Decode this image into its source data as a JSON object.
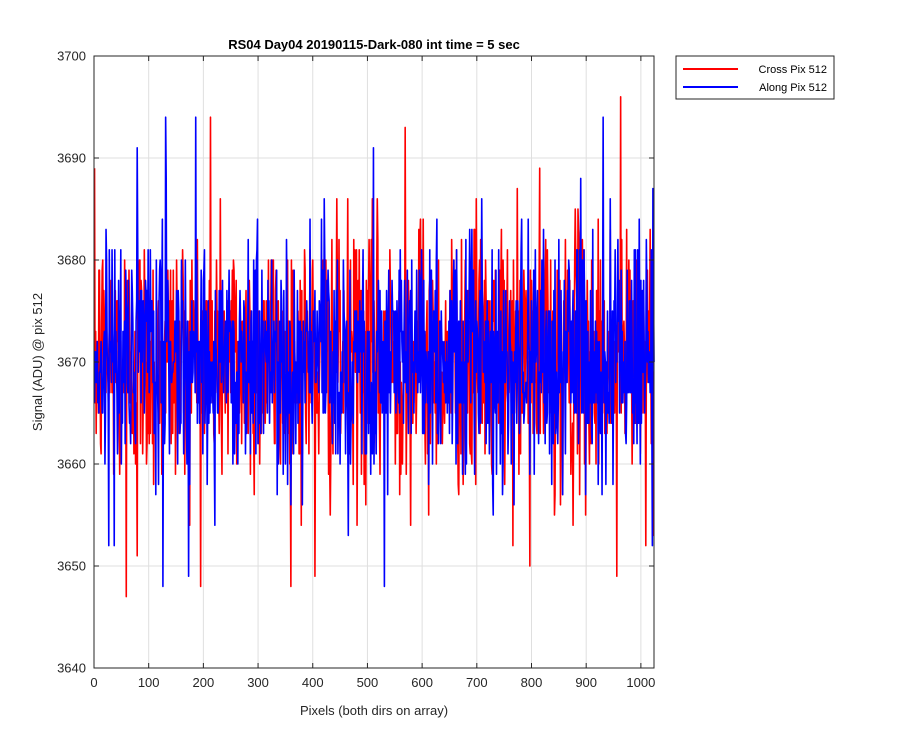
{
  "chart_data": {
    "type": "line",
    "title": "RS04 Day04 20190115-Dark-080 int time = 5 sec",
    "xlabel": "Pixels (both dirs on array)",
    "ylabel": "Signal (ADU) @ pix 512",
    "xlim": [
      0,
      1024
    ],
    "ylim": [
      3640,
      3700
    ],
    "xticks": [
      0,
      100,
      200,
      300,
      400,
      500,
      600,
      700,
      800,
      900,
      1000
    ],
    "yticks": [
      3640,
      3650,
      3660,
      3670,
      3680,
      3690,
      3700
    ],
    "xtick_labels": [
      "0",
      "100",
      "200",
      "300",
      "400",
      "500",
      "600",
      "700",
      "800",
      "900",
      "1000"
    ],
    "ytick_labels": [
      "3640",
      "3650",
      "3660",
      "3670",
      "3680",
      "3690",
      "3700"
    ],
    "grid": true,
    "legend_position": "outside-top-right",
    "series": [
      {
        "name": "Cross Pix 512",
        "color": "#ff0000",
        "n_points": 1024,
        "mean": 3670.5,
        "std": 6.5,
        "extremes": [
          {
            "x": 58,
            "y": 3647
          },
          {
            "x": 78,
            "y": 3651
          },
          {
            "x": 212,
            "y": 3694
          },
          {
            "x": 403,
            "y": 3649
          },
          {
            "x": 568,
            "y": 3693
          },
          {
            "x": 796,
            "y": 3650
          },
          {
            "x": 962,
            "y": 3696
          },
          {
            "x": 955,
            "y": 3649
          },
          {
            "x": 1008,
            "y": 3652
          }
        ]
      },
      {
        "name": "Along Pix 512",
        "color": "#0000ff",
        "n_points": 1024,
        "mean": 3670.5,
        "std": 6.0,
        "extremes": [
          {
            "x": 125,
            "y": 3648
          },
          {
            "x": 130,
            "y": 3694
          },
          {
            "x": 185,
            "y": 3694
          },
          {
            "x": 510,
            "y": 3691
          },
          {
            "x": 530,
            "y": 3648
          },
          {
            "x": 930,
            "y": 3694
          },
          {
            "x": 1020,
            "y": 3652
          }
        ]
      }
    ]
  }
}
